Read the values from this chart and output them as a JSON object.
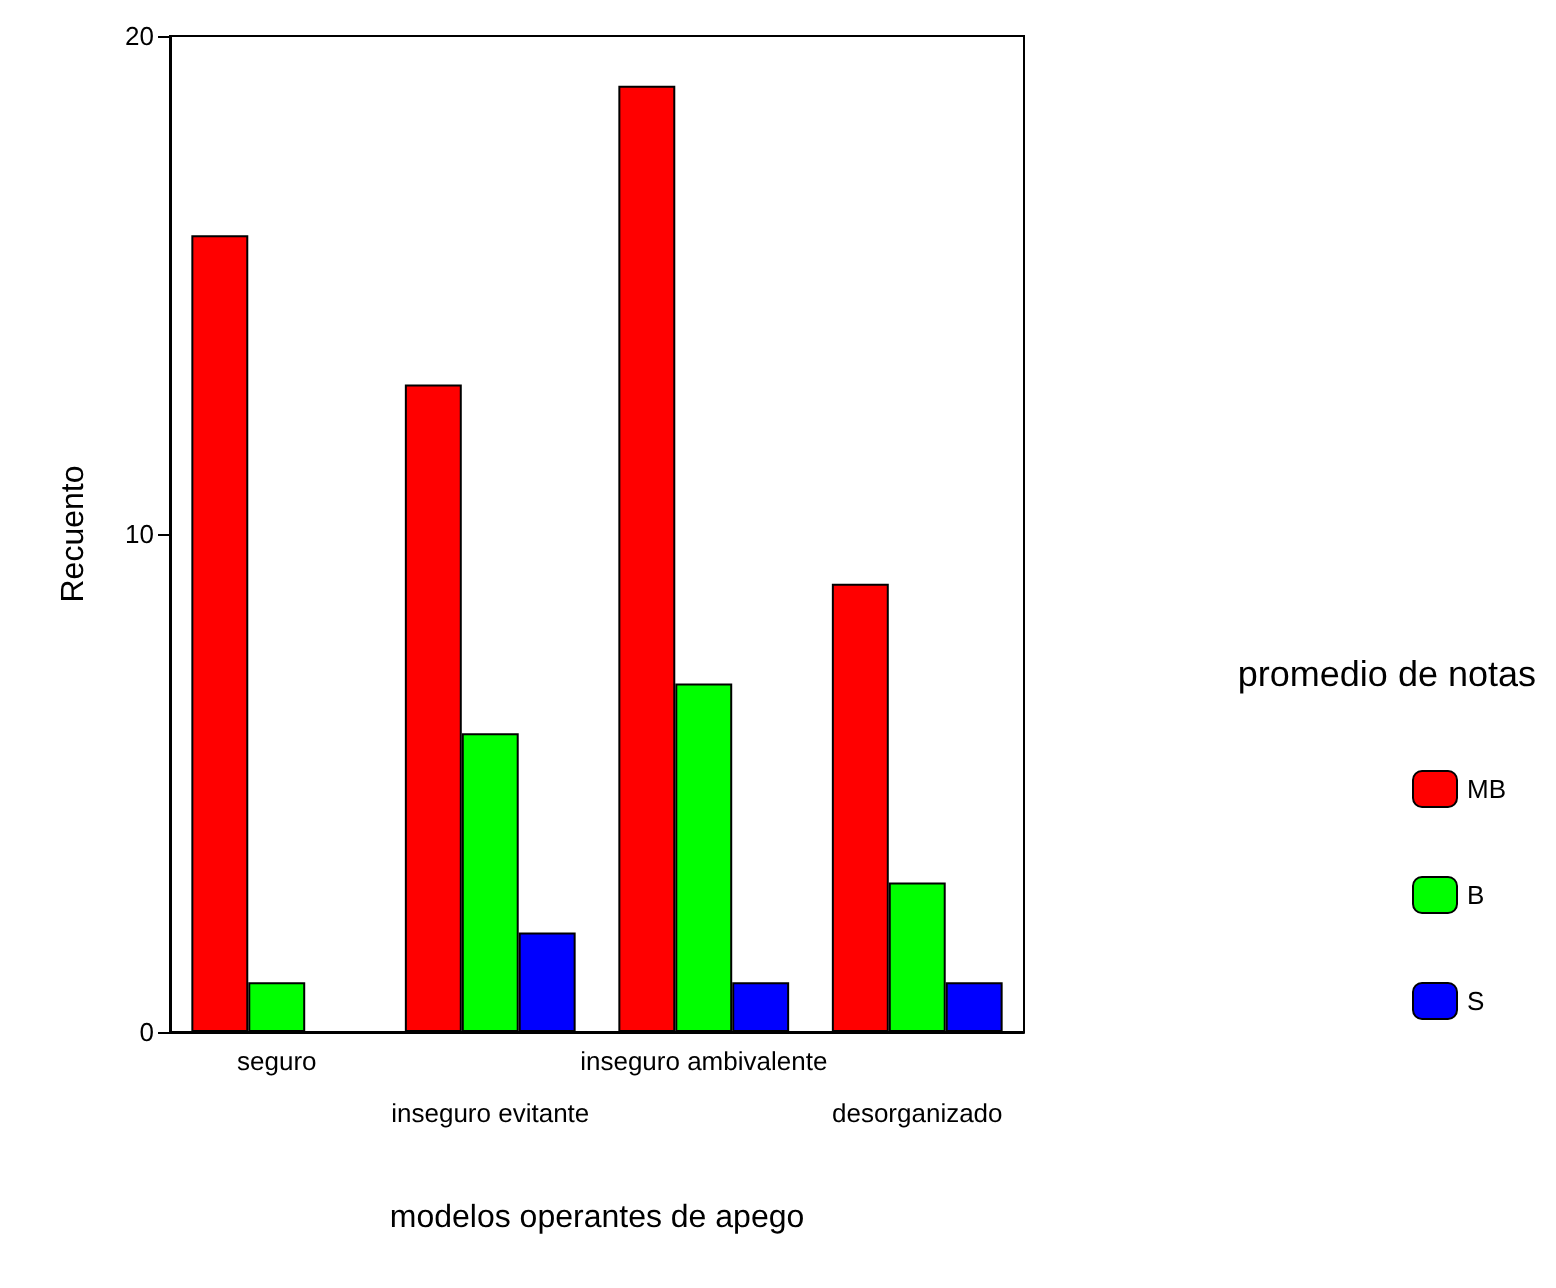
{
  "chart_data": {
    "type": "bar",
    "xlabel": "modelos operantes de apego",
    "ylabel": "Recuento",
    "legend_title": "promedio de notas",
    "categories": [
      "seguro",
      "inseguro evitante",
      "inseguro ambivalente",
      "desorganizado"
    ],
    "series": [
      {
        "name": "MB",
        "color": "#ff0000",
        "values": [
          16,
          13,
          19,
          9
        ]
      },
      {
        "name": "B",
        "color": "#00ff00",
        "values": [
          1,
          6,
          7,
          3
        ]
      },
      {
        "name": "S",
        "color": "#0000ff",
        "values": [
          null,
          2,
          1,
          1
        ]
      }
    ],
    "ylim": [
      0,
      20
    ],
    "yticks": [
      0,
      10,
      20
    ],
    "grid": false,
    "legend": "right"
  }
}
